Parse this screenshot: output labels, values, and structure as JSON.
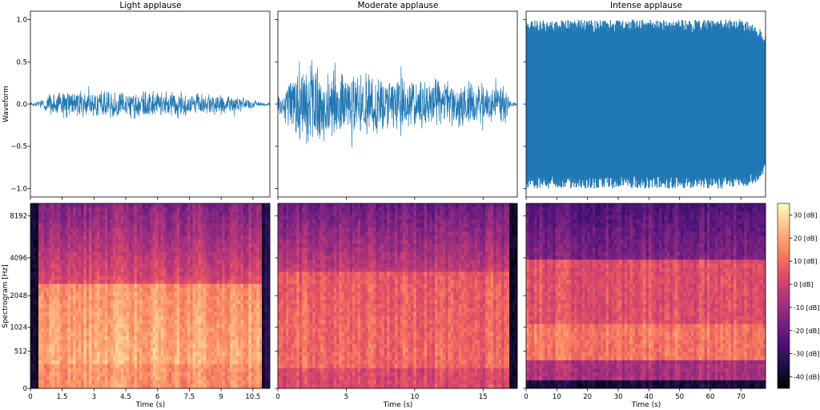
{
  "colorbar": {
    "ticks": [
      30,
      20,
      10,
      0,
      -10,
      -20,
      -30,
      -40
    ],
    "tick_labels": [
      "30 [dB]",
      "20 [dB]",
      "10 [dB]",
      "0 [dB]",
      "-10 [dB]",
      "-20 [dB]",
      "-30 [dB]",
      "-40 [dB]"
    ],
    "range": [
      -45,
      35
    ],
    "colors": [
      "#000004",
      "#1c1044",
      "#4f127b",
      "#812581",
      "#b5367a",
      "#e55064",
      "#fb8761",
      "#fec287",
      "#fcfdbf"
    ]
  },
  "chart_data": [
    {
      "type": "line",
      "title": "Light applause",
      "ylabel": "Waveform",
      "xlabel": "",
      "color": "#1f77b4",
      "xlim": [
        0,
        11.3
      ],
      "ylim": [
        -1.1,
        1.1
      ],
      "yticks": [
        1.0,
        0.5,
        0.0,
        -0.5,
        -1.0
      ],
      "ytick_labels": [
        "1.0",
        "0.5",
        "0.0",
        "−0.5",
        "−1.0"
      ],
      "envelope_x": [
        0,
        0.5,
        0.7,
        1.0,
        2.0,
        3.0,
        4.0,
        5.0,
        5.5,
        6.0,
        7.0,
        8.0,
        9.0,
        10.0,
        10.5,
        11.0,
        11.3
      ],
      "envelope_amp": [
        0.02,
        0.05,
        0.1,
        0.16,
        0.18,
        0.17,
        0.17,
        0.19,
        0.2,
        0.16,
        0.16,
        0.15,
        0.13,
        0.09,
        0.05,
        0.02,
        0.01
      ]
    },
    {
      "type": "line",
      "title": "Moderate applause",
      "ylabel": "",
      "xlabel": "",
      "color": "#1f77b4",
      "xlim": [
        0,
        17.5
      ],
      "ylim": [
        -1.1,
        1.1
      ],
      "envelope_x": [
        0,
        0.5,
        1.5,
        2.5,
        3.5,
        5.0,
        7.0,
        9.0,
        11.0,
        13.0,
        15.0,
        16.5,
        17.0,
        17.5
      ],
      "envelope_amp": [
        0.1,
        0.25,
        0.55,
        0.55,
        0.45,
        0.4,
        0.38,
        0.35,
        0.32,
        0.3,
        0.28,
        0.25,
        0.05,
        0.01
      ]
    },
    {
      "type": "line",
      "title": "Intense applause",
      "ylabel": "",
      "xlabel": "",
      "color": "#1f77b4",
      "xlim": [
        0,
        78
      ],
      "ylim": [
        -1.1,
        1.1
      ],
      "envelope_x": [
        0,
        1,
        60,
        70,
        74,
        76,
        78
      ],
      "envelope_amp": [
        1.0,
        1.0,
        1.0,
        1.0,
        0.95,
        0.9,
        0.8
      ]
    },
    {
      "type": "heatmap",
      "title": "",
      "ylabel": "Spectrogram [Hz]",
      "xlabel": "Time (s)",
      "xlim": [
        0,
        11.3
      ],
      "xticks": [
        0,
        1.5,
        3,
        4.5,
        6,
        7.5,
        9,
        10.5
      ],
      "xtick_labels": [
        "0",
        "1.5",
        "3",
        "4.5",
        "6",
        "7.5",
        "9",
        "10.5"
      ],
      "yscale": "log-like (mel)",
      "yticks": [
        0,
        512,
        1024,
        2048,
        4096,
        8192
      ],
      "ytick_labels": [
        "0",
        "512",
        "1024",
        "2048",
        "4096",
        "8192"
      ],
      "active_span": [
        0.4,
        10.9
      ]
    },
    {
      "type": "heatmap",
      "title": "",
      "ylabel": "",
      "xlabel": "Time (s)",
      "xlim": [
        0,
        17.5
      ],
      "xticks": [
        0,
        5,
        10,
        15
      ],
      "xtick_labels": [
        "0",
        "5",
        "10",
        "15"
      ],
      "active_span": [
        0.0,
        17.0
      ]
    },
    {
      "type": "heatmap",
      "title": "",
      "ylabel": "",
      "xlabel": "Time (s)",
      "xlim": [
        0,
        78
      ],
      "xticks": [
        0,
        10,
        20,
        30,
        40,
        50,
        60,
        70
      ],
      "xtick_labels": [
        "0",
        "10",
        "20",
        "30",
        "40",
        "50",
        "60",
        "70"
      ],
      "active_span": [
        0.0,
        78.0
      ]
    }
  ]
}
